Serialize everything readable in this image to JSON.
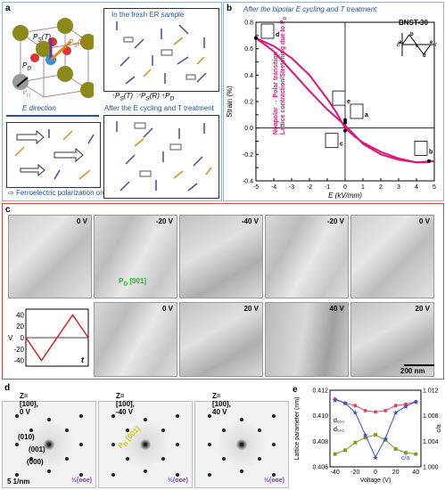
{
  "panel_a": {
    "label": "a",
    "fresh_title": "In the fresh ER sample",
    "edir_title": "E direction",
    "cycled_title": "After the E cycling and T treatment",
    "legend_ps_t": "P",
    "legend_ps_t_sub": "S",
    "legend_ps_t_suffix": "(T)",
    "legend_ps_r": "P",
    "legend_ps_r_sub": "S",
    "legend_ps_r_suffix": "(R)",
    "legend_pd": "P",
    "legend_pd_sub": "D",
    "crystal_ps_t": "P",
    "crystal_ps_t_sub": "S",
    "crystal_ps_t_suffix": "(T)",
    "crystal_ps_r": "P",
    "crystal_ps_r_sub": "S",
    "crystal_ps_r_suffix": "(R)",
    "crystal_pd": "P",
    "crystal_pd_sub": "D",
    "crystal_vo": "V",
    "crystal_vo_sub": "O",
    "ordering_legend": "Ferroelectric polarization ordering"
  },
  "panel_b": {
    "label": "b",
    "title": "After the bipolar E cycling and T treatment",
    "sample": "BNST-30",
    "annot_line1": "Nonpolar → Polar transition",
    "annot_line2": "Lattice contraction/Stretching due to P",
    "annot_line2_sub": "D",
    "points": [
      "a",
      "b",
      "c",
      "d",
      "e"
    ],
    "inset_points": [
      "a",
      "b",
      "c",
      "d",
      "e"
    ],
    "inset_e": "E",
    "inset_t": "t"
  },
  "chart_data": [
    {
      "type": "line",
      "title": "",
      "xlabel": "E (kV/mm)",
      "ylabel": "Strain (%)",
      "xlim": [
        -5,
        5
      ],
      "ylim": [
        -0.4,
        0.8
      ],
      "xticks": [
        -5,
        -4,
        -3,
        -2,
        -1,
        0,
        1,
        2,
        3,
        4,
        5
      ],
      "yticks": [
        -0.4,
        -0.3,
        -0.2,
        -0.1,
        0.0,
        0.1,
        0.2,
        0.3,
        0.4,
        0.5,
        0.6,
        0.7,
        0.8
      ],
      "grid": false,
      "series": [
        {
          "x": [
            -5,
            -4,
            -3,
            -2,
            -1,
            -0.5,
            0,
            0.5,
            1,
            2,
            3,
            4,
            4.5,
            5
          ],
          "y": [
            0.68,
            0.62,
            0.53,
            0.4,
            0.22,
            0.12,
            0.0,
            -0.06,
            -0.11,
            -0.18,
            -0.23,
            -0.26,
            -0.26,
            -0.25
          ]
        },
        {
          "x": [
            5,
            4,
            3,
            2,
            1,
            0.5,
            0,
            -0.5,
            -1,
            -2,
            -3,
            -4,
            -5
          ],
          "y": [
            -0.25,
            -0.26,
            -0.24,
            -0.2,
            -0.12,
            -0.05,
            0.02,
            0.08,
            0.14,
            0.28,
            0.43,
            0.58,
            0.68
          ]
        }
      ],
      "markers": [
        {
          "label": "a",
          "x": 0,
          "y": 0.04
        },
        {
          "label": "b",
          "x": 4.7,
          "y": -0.25
        },
        {
          "label": "c",
          "x": 0,
          "y": -0.02
        },
        {
          "label": "d",
          "x": -5,
          "y": 0.68
        },
        {
          "label": "e",
          "x": 0,
          "y": 0.06
        }
      ]
    },
    {
      "type": "line",
      "title": "",
      "xlabel": "t",
      "ylabel": "V",
      "xlim": [
        0,
        4
      ],
      "ylim": [
        -50,
        50
      ],
      "yticks": [
        -40,
        -20,
        0,
        20,
        40
      ],
      "grid": false,
      "series": [
        {
          "x": [
            0,
            1,
            3,
            4
          ],
          "y": [
            0,
            -40,
            40,
            0
          ]
        }
      ]
    },
    {
      "type": "line",
      "title": "",
      "xlabel": "Voltage (V)",
      "ylabel": "Lattice parameter (nm)",
      "y2label": "c/a",
      "xlim": [
        -45,
        45
      ],
      "ylim": [
        0.406,
        0.412
      ],
      "y2lim": [
        1.0,
        1.012
      ],
      "xticks": [
        -40,
        -20,
        0,
        20,
        40
      ],
      "yticks": [
        0.406,
        0.408,
        0.41,
        0.412
      ],
      "y2ticks": [
        1.0,
        1.004,
        1.008,
        1.012
      ],
      "series": [
        {
          "name": "d₀₁₀",
          "x": [
            -40,
            -30,
            -20,
            -10,
            0,
            10,
            20,
            30,
            40
          ],
          "y": [
            0.4113,
            0.411,
            0.4108,
            0.4104,
            0.4103,
            0.4104,
            0.4108,
            0.4109,
            0.4111
          ]
        },
        {
          "name": "d₀₀₁",
          "x": [
            -40,
            -30,
            -20,
            -10,
            0,
            10,
            20,
            30,
            40
          ],
          "y": [
            0.407,
            0.4073,
            0.4079,
            0.4083,
            0.4085,
            0.4081,
            0.4074,
            0.4071,
            0.407
          ]
        },
        {
          "name": "c/a",
          "axis": "right",
          "x": [
            -40,
            -30,
            -20,
            -10,
            0,
            10,
            20,
            30,
            40
          ],
          "y": [
            1.0105,
            1.01,
            1.0085,
            1.005,
            1.0015,
            1.0045,
            1.0085,
            1.0095,
            1.0102
          ]
        }
      ]
    }
  ],
  "panel_c": {
    "label": "c",
    "top_row": [
      "0 V",
      "-20 V",
      "-40 V",
      "-20 V",
      "0 V"
    ],
    "bottom_row": [
      "0 V",
      "20 V",
      "40 V",
      "20 V"
    ],
    "annot": "P",
    "annot_sub": "D",
    "annot_suffix": " [001]",
    "scale": "200 nm",
    "wave_t": "t",
    "wave_v": "V"
  },
  "panel_d": {
    "label": "d",
    "frames": [
      "Z=[100], 0 V",
      "Z=[100], -40 V",
      "Z=[100], 40 V"
    ],
    "spots": [
      "(010)",
      "(001)",
      "(000)"
    ],
    "half_spot": "½(ooe)",
    "annot": "P",
    "annot_sub": "D",
    "annot_suffix": " [001]",
    "scale": "5 1/nm"
  },
  "panel_e": {
    "label": "e"
  }
}
